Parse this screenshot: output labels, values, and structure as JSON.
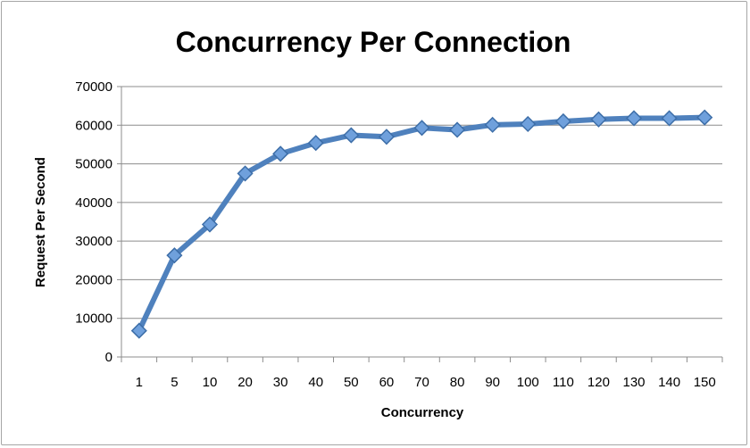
{
  "chart_data": {
    "type": "line",
    "title": "Concurrency Per Connection",
    "xlabel": "Concurrency",
    "ylabel": "Request Per Second",
    "categories": [
      "1",
      "5",
      "10",
      "20",
      "30",
      "40",
      "50",
      "60",
      "70",
      "80",
      "90",
      "100",
      "110",
      "120",
      "130",
      "140",
      "150"
    ],
    "y_ticks": [
      "0",
      "10000",
      "20000",
      "30000",
      "40000",
      "50000",
      "60000",
      "70000"
    ],
    "ylim": [
      0,
      70000
    ],
    "grid": true,
    "legend": "none",
    "series": [
      {
        "color": "#4f81bd",
        "marker_color": "#6fa0dc",
        "values": [
          6800,
          26300,
          34300,
          47500,
          52600,
          55400,
          57400,
          57000,
          59300,
          58800,
          60100,
          60300,
          61000,
          61500,
          61800,
          61800,
          62000
        ]
      }
    ]
  }
}
